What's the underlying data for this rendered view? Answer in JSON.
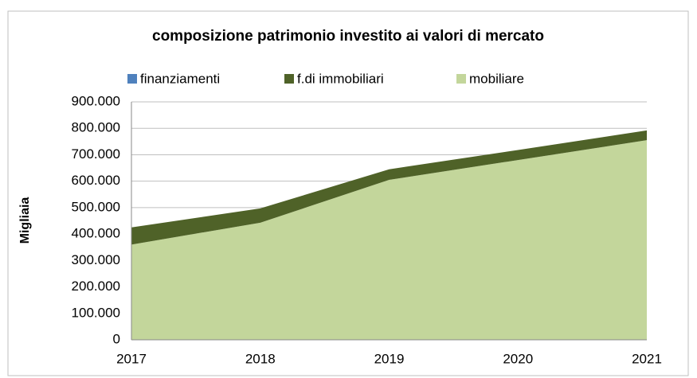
{
  "chart_data": {
    "type": "stacked_area",
    "title": "composizione patrimonio investito ai valori di mercato",
    "ylabel": "Migliaia",
    "categories": [
      "2017",
      "2018",
      "2019",
      "2020",
      "2021"
    ],
    "series": [
      {
        "name": "finanziamenti",
        "color": "#4f81bd",
        "values": [
          0,
          0,
          0,
          0,
          0
        ]
      },
      {
        "name": "f.di immobiliari",
        "color": "#4f6228",
        "values": [
          65000,
          54000,
          40000,
          38000,
          37000
        ]
      },
      {
        "name": "mobiliare",
        "color": "#c3d69b",
        "values": [
          360000,
          443000,
          605000,
          680000,
          755000
        ]
      }
    ],
    "ylim": [
      0,
      900000
    ],
    "yticks": [
      0,
      {
        "value": 100000,
        "label": "100.000"
      },
      {
        "value": 200000,
        "label": "200.000"
      },
      {
        "value": 300000,
        "label": "300.000"
      },
      {
        "value": 400000,
        "label": "400.000"
      },
      {
        "value": 500000,
        "label": "500.000"
      },
      {
        "value": 600000,
        "label": "600.000"
      },
      {
        "value": 700000,
        "label": "700.000"
      },
      {
        "value": 800000,
        "label": "800.000"
      },
      {
        "value": 900000,
        "label": "900.000"
      }
    ],
    "grid": true,
    "legend": "top"
  }
}
